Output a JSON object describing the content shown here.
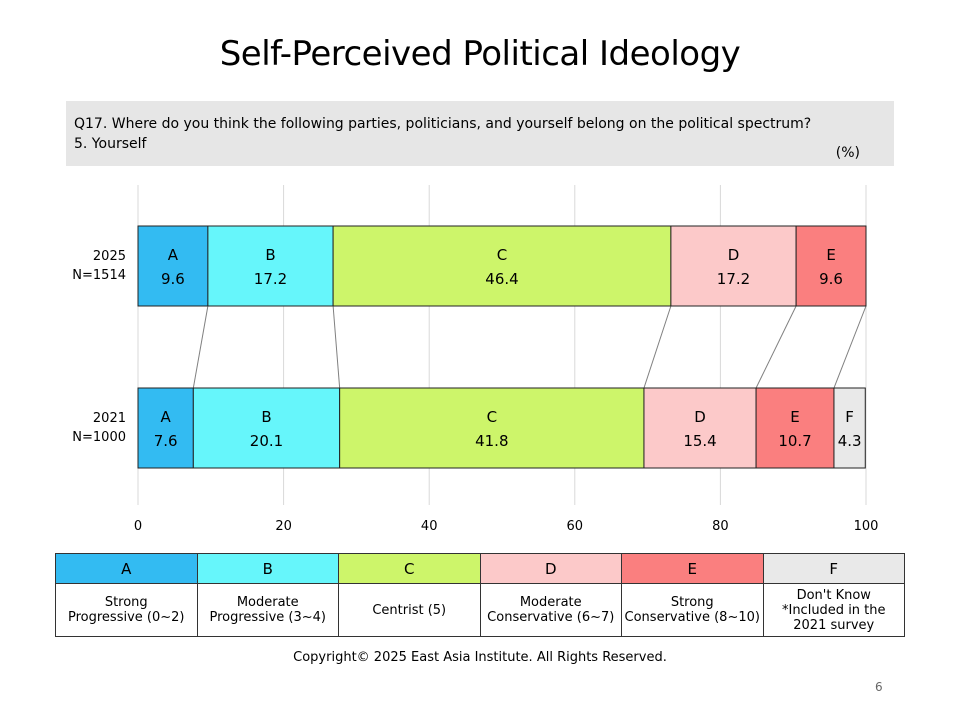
{
  "title": "Self-Perceived Political Ideology",
  "question": {
    "line1": "Q17. Where do you think the following parties, politicians, and yourself belong on the political spectrum?",
    "line2": "5. Yourself",
    "unit": "(%)"
  },
  "colors": {
    "A": "#33bbf2",
    "B": "#66f6fb",
    "C": "#cdf56a",
    "D": "#fcc9c9",
    "E": "#fa7f7f",
    "F": "#e9e9e9"
  },
  "chart_data": {
    "type": "bar",
    "orientation": "horizontal-stacked-100",
    "categories": [
      {
        "label1": "2025",
        "label2": "N=1514"
      },
      {
        "label1": "2021",
        "label2": "N=1000"
      }
    ],
    "series": [
      {
        "name": "A",
        "values": [
          9.6,
          7.6
        ]
      },
      {
        "name": "B",
        "values": [
          17.2,
          20.1
        ]
      },
      {
        "name": "C",
        "values": [
          46.4,
          41.8
        ]
      },
      {
        "name": "D",
        "values": [
          17.2,
          15.4
        ]
      },
      {
        "name": "E",
        "values": [
          9.6,
          10.7
        ]
      },
      {
        "name": "F",
        "values": [
          null,
          4.3
        ]
      }
    ],
    "xticks": [
      "0",
      "20",
      "40",
      "60",
      "80",
      "100"
    ],
    "xlim": [
      0,
      100
    ],
    "grid": true
  },
  "legend": {
    "codes": [
      "A",
      "B",
      "C",
      "D",
      "E",
      "F"
    ],
    "descriptions": [
      [
        "Strong",
        "Progressive (0~2)"
      ],
      [
        "Moderate",
        "Progressive (3~4)"
      ],
      [
        "Centrist (5)"
      ],
      [
        "Moderate",
        "Conservative (6~7)"
      ],
      [
        "Strong",
        "Conservative (8~10)"
      ],
      [
        "Don't Know",
        "*Included in the",
        "2021 survey"
      ]
    ]
  },
  "copyright": "Copyright© 2025 East Asia Institute. All Rights Reserved.",
  "page_number": "6"
}
